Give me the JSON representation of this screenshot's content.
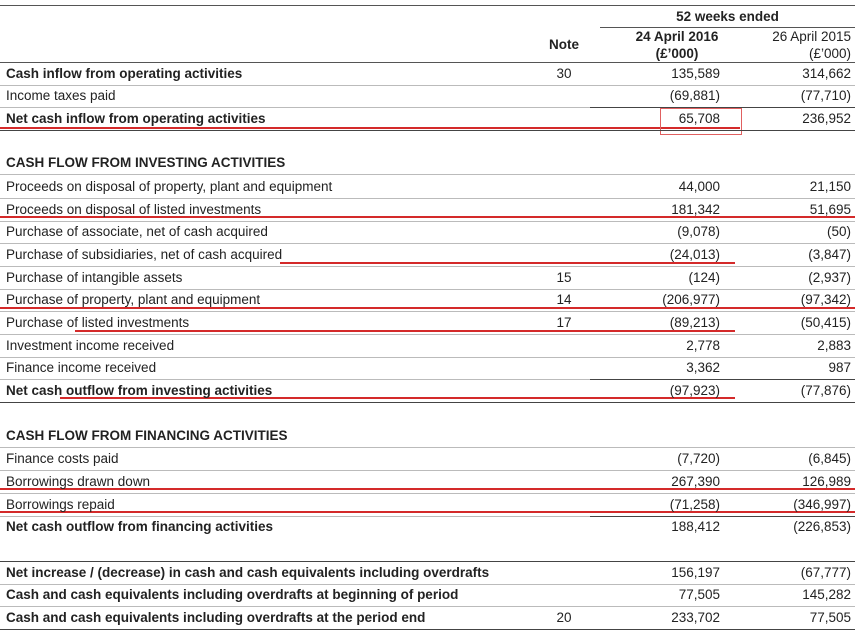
{
  "header": {
    "period": "52 weeks ended",
    "note": "Note",
    "col1": "24 April 2016",
    "col1_unit": "(£’000)",
    "col2": "26 April 2015",
    "col2_unit": "(£’000)"
  },
  "table": {
    "rows": [
      {
        "label": "Cash inflow from operating activities",
        "note": "30",
        "values": [
          "135,589",
          "314,662"
        ]
      },
      {
        "label": "Income taxes paid",
        "values": [
          "(69,881)",
          "(77,710)"
        ]
      },
      {
        "label": "Net cash inflow from operating activities",
        "values": [
          "65,708",
          "236,952"
        ]
      },
      {
        "label": "CASH FLOW FROM INVESTING ACTIVITIES"
      },
      {
        "label": "Proceeds on disposal of property, plant and equipment",
        "values": [
          "44,000",
          "21,150"
        ]
      },
      {
        "label": "Proceeds on disposal of listed investments",
        "values": [
          "181,342",
          "51,695"
        ]
      },
      {
        "label": "Purchase of associate, net of cash acquired",
        "values": [
          "(9,078)",
          "(50)"
        ]
      },
      {
        "label": "Purchase of subsidiaries, net of cash acquired",
        "values": [
          "(24,013)",
          "(3,847)"
        ]
      },
      {
        "label": "Purchase of intangible assets",
        "note": "15",
        "values": [
          "(124)",
          "(2,937)"
        ]
      },
      {
        "label": "Purchase of property, plant and equipment",
        "note": "14",
        "values": [
          "(206,977)",
          "(97,342)"
        ]
      },
      {
        "label": "Purchase of listed investments",
        "note": "17",
        "values": [
          "(89,213)",
          "(50,415)"
        ]
      },
      {
        "label": "Investment income received",
        "values": [
          "2,778",
          "2,883"
        ]
      },
      {
        "label": "Finance income received",
        "values": [
          "3,362",
          "987"
        ]
      },
      {
        "label": "Net cash outflow from investing activities",
        "values": [
          "(97,923)",
          "(77,876)"
        ]
      },
      {
        "label": "CASH FLOW FROM FINANCING ACTIVITIES"
      },
      {
        "label": "Finance costs paid",
        "values": [
          "(7,720)",
          "(6,845)"
        ]
      },
      {
        "label": "Borrowings drawn down",
        "values": [
          "267,390",
          "126,989"
        ]
      },
      {
        "label": "Borrowings repaid",
        "values": [
          "(71,258)",
          "(346,997)"
        ]
      },
      {
        "label": "Net cash outflow from financing activities",
        "values": [
          "188,412",
          "(226,853)"
        ]
      },
      {
        "label": "Net increase / (decrease) in cash and cash equivalents including overdrafts",
        "values": [
          "156,197",
          "(67,777)"
        ]
      },
      {
        "label": "Cash and cash equivalents including overdrafts at beginning of period",
        "values": [
          "77,505",
          "145,282"
        ]
      },
      {
        "label": "Cash and cash equivalents including overdrafts at the period end",
        "note": "20",
        "values": [
          "233,702",
          "77,505"
        ]
      }
    ]
  }
}
